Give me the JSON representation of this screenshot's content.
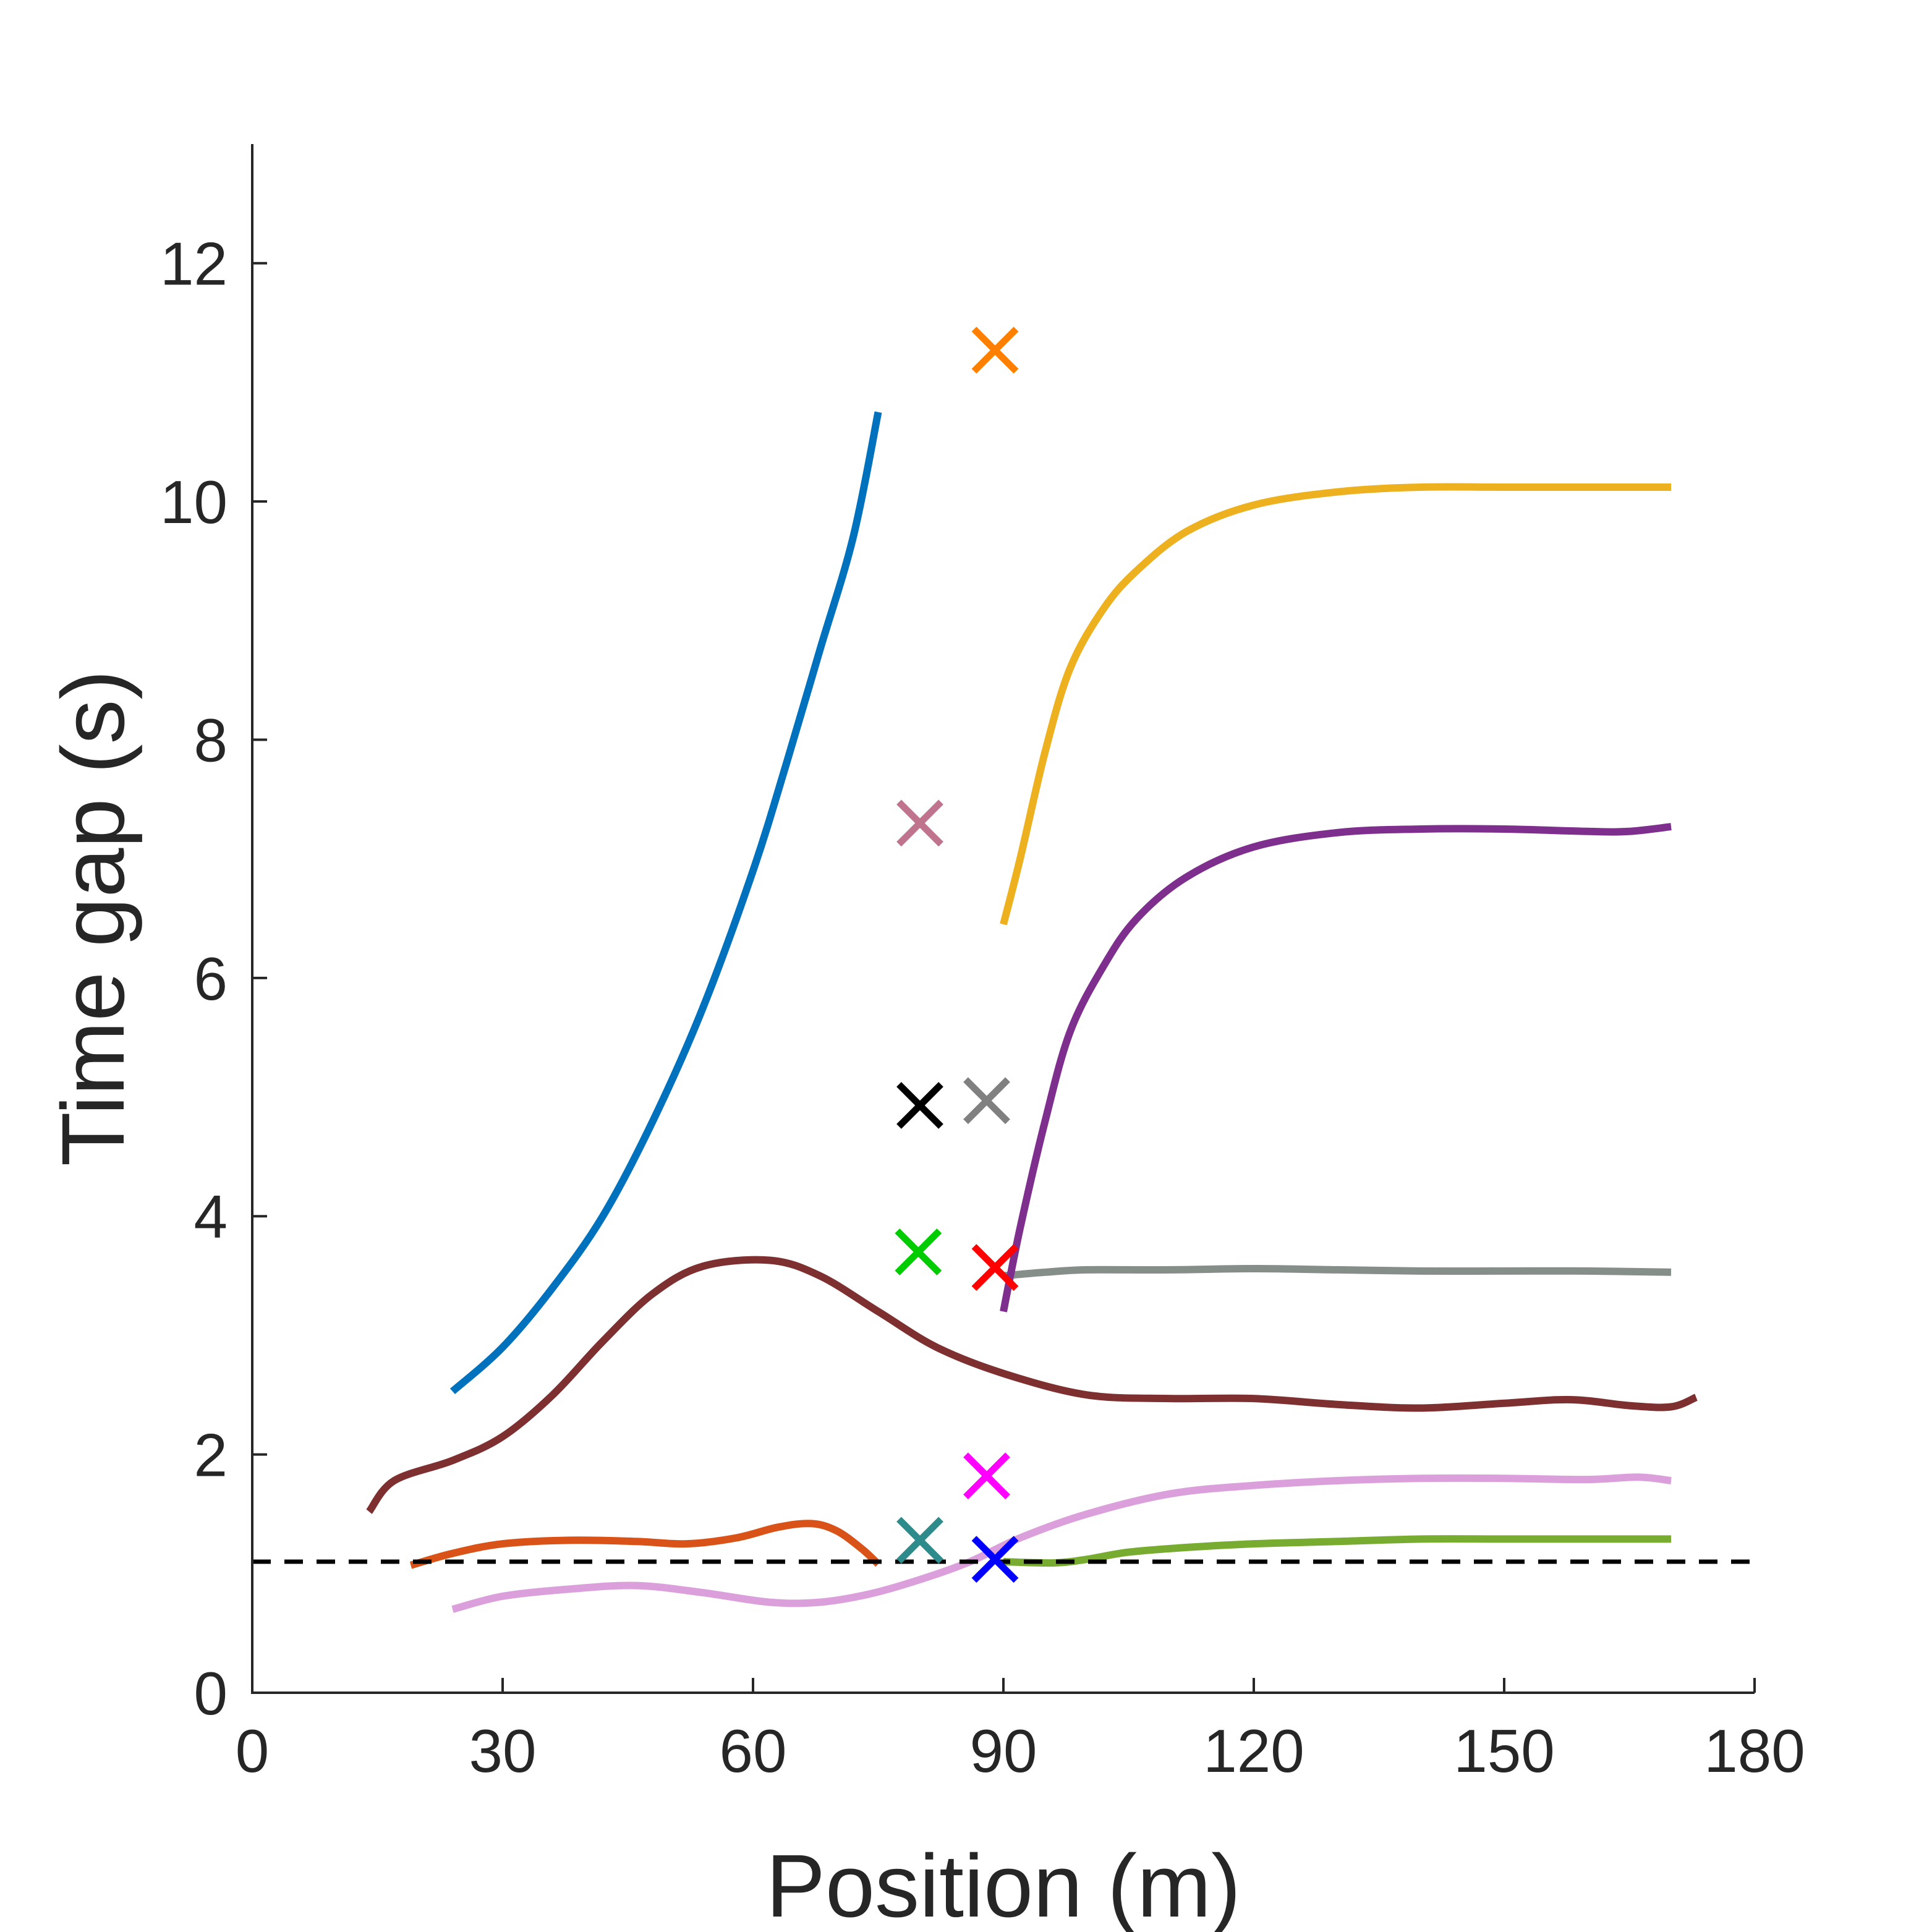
{
  "chart_data": {
    "type": "line",
    "xlabel": "Position (m)",
    "ylabel": "Time gap (s)",
    "xlim": [
      0,
      180
    ],
    "ylim": [
      0,
      13
    ],
    "xticks": [
      0,
      30,
      60,
      90,
      120,
      150,
      180
    ],
    "yticks": [
      0,
      2,
      4,
      6,
      8,
      10,
      12
    ],
    "grid": false,
    "legend": "none",
    "threshold": {
      "y": 1.1,
      "style": "dashed",
      "color": "#000000"
    },
    "series": [
      {
        "color": "#0072BD",
        "points": [
          [
            24,
            2.53
          ],
          [
            30,
            2.9
          ],
          [
            36,
            3.4
          ],
          [
            42,
            4.0
          ],
          [
            48,
            4.8
          ],
          [
            54,
            5.75
          ],
          [
            60,
            6.9
          ],
          [
            64,
            7.8
          ],
          [
            68,
            8.75
          ],
          [
            72,
            9.7
          ],
          [
            75,
            10.75
          ]
        ]
      },
      {
        "color": "#7E2F2F",
        "points": [
          [
            14,
            1.52
          ],
          [
            17,
            1.78
          ],
          [
            24,
            1.95
          ],
          [
            30,
            2.15
          ],
          [
            36,
            2.5
          ],
          [
            42,
            2.95
          ],
          [
            48,
            3.35
          ],
          [
            54,
            3.58
          ],
          [
            62,
            3.63
          ],
          [
            68,
            3.5
          ],
          [
            75,
            3.2
          ],
          [
            82,
            2.9
          ],
          [
            90,
            2.68
          ],
          [
            100,
            2.5
          ],
          [
            110,
            2.47
          ],
          [
            120,
            2.47
          ],
          [
            130,
            2.42
          ],
          [
            140,
            2.39
          ],
          [
            150,
            2.43
          ],
          [
            158,
            2.46
          ],
          [
            165,
            2.41
          ],
          [
            170,
            2.4
          ],
          [
            173,
            2.48
          ]
        ]
      },
      {
        "color": "#D95319",
        "points": [
          [
            19,
            1.07
          ],
          [
            24,
            1.17
          ],
          [
            30,
            1.25
          ],
          [
            38,
            1.28
          ],
          [
            46,
            1.27
          ],
          [
            52,
            1.25
          ],
          [
            58,
            1.3
          ],
          [
            63,
            1.39
          ],
          [
            67,
            1.42
          ],
          [
            70,
            1.36
          ],
          [
            73,
            1.21
          ],
          [
            75,
            1.08
          ]
        ]
      },
      {
        "color": "#DBA0DB",
        "points": [
          [
            24,
            0.7
          ],
          [
            30,
            0.81
          ],
          [
            38,
            0.87
          ],
          [
            46,
            0.9
          ],
          [
            54,
            0.84
          ],
          [
            62,
            0.76
          ],
          [
            68,
            0.76
          ],
          [
            74,
            0.83
          ],
          [
            80,
            0.95
          ],
          [
            86,
            1.1
          ],
          [
            92,
            1.3
          ],
          [
            100,
            1.5
          ],
          [
            110,
            1.67
          ],
          [
            120,
            1.74
          ],
          [
            130,
            1.78
          ],
          [
            140,
            1.8
          ],
          [
            150,
            1.8
          ],
          [
            160,
            1.79
          ],
          [
            166,
            1.81
          ],
          [
            170,
            1.78
          ]
        ]
      },
      {
        "color": "#77AC30",
        "points": [
          [
            90,
            1.1
          ],
          [
            96,
            1.09
          ],
          [
            100,
            1.12
          ],
          [
            105,
            1.18
          ],
          [
            112,
            1.22
          ],
          [
            120,
            1.25
          ],
          [
            130,
            1.27
          ],
          [
            140,
            1.29
          ],
          [
            150,
            1.29
          ],
          [
            160,
            1.29
          ],
          [
            170,
            1.29
          ]
        ]
      },
      {
        "color": "#858E89",
        "points": [
          [
            90,
            3.5
          ],
          [
            95,
            3.53
          ],
          [
            100,
            3.55
          ],
          [
            110,
            3.55
          ],
          [
            120,
            3.56
          ],
          [
            130,
            3.55
          ],
          [
            140,
            3.54
          ],
          [
            150,
            3.54
          ],
          [
            160,
            3.54
          ],
          [
            170,
            3.53
          ]
        ]
      },
      {
        "color": "#7E2F8E",
        "points": [
          [
            90,
            3.2
          ],
          [
            92,
            3.9
          ],
          [
            95,
            4.8
          ],
          [
            98,
            5.55
          ],
          [
            102,
            6.1
          ],
          [
            106,
            6.5
          ],
          [
            112,
            6.85
          ],
          [
            120,
            7.1
          ],
          [
            130,
            7.22
          ],
          [
            140,
            7.25
          ],
          [
            150,
            7.25
          ],
          [
            160,
            7.23
          ],
          [
            165,
            7.23
          ],
          [
            170,
            7.27
          ]
        ]
      },
      {
        "color": "#EDB120",
        "points": [
          [
            90,
            6.45
          ],
          [
            92,
            7.0
          ],
          [
            95,
            7.9
          ],
          [
            98,
            8.6
          ],
          [
            102,
            9.1
          ],
          [
            106,
            9.42
          ],
          [
            112,
            9.75
          ],
          [
            120,
            9.97
          ],
          [
            130,
            10.08
          ],
          [
            140,
            10.12
          ],
          [
            150,
            10.12
          ],
          [
            160,
            10.12
          ],
          [
            170,
            10.12
          ]
        ]
      }
    ],
    "markers": [
      {
        "color": "#FF8000",
        "x": 89.0,
        "y": 11.27
      },
      {
        "color": "#C0738C",
        "x": 80.0,
        "y": 7.3
      },
      {
        "color": "#000000",
        "x": 80.0,
        "y": 4.93
      },
      {
        "color": "#808080",
        "x": 88.0,
        "y": 4.97
      },
      {
        "color": "#00CC00",
        "x": 79.8,
        "y": 3.7
      },
      {
        "color": "#FF0000",
        "x": 89.0,
        "y": 3.57
      },
      {
        "color": "#FF00FF",
        "x": 88.0,
        "y": 1.82
      },
      {
        "color": "#2E8B8B",
        "x": 80.0,
        "y": 1.28
      },
      {
        "color": "#0000FF",
        "x": 89.0,
        "y": 1.12
      }
    ]
  }
}
